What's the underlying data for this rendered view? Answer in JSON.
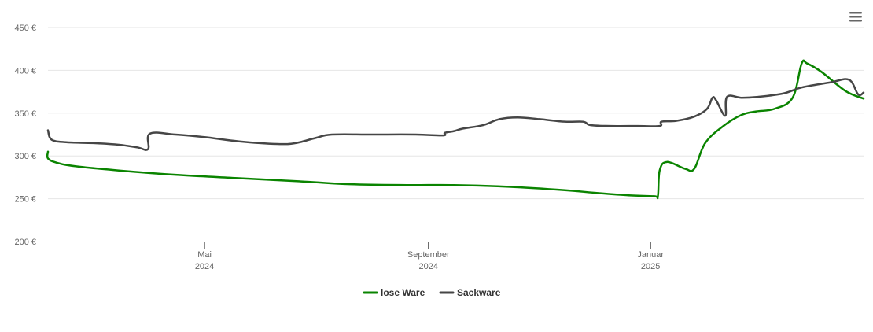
{
  "menu": {
    "icon": "hamburger-menu-icon"
  },
  "colors": {
    "lose_ware": "#0a8400",
    "sackware": "#464646",
    "grid": "#e6e6e6",
    "axis": "#333333"
  },
  "chart_data": {
    "type": "line",
    "xlabel": "",
    "ylabel": "",
    "ylim": [
      200,
      450
    ],
    "yticks": [
      {
        "value": 200,
        "label": "200 €"
      },
      {
        "value": 250,
        "label": "250 €"
      },
      {
        "value": 300,
        "label": "300 €"
      },
      {
        "value": 350,
        "label": "350 €"
      },
      {
        "value": 400,
        "label": "400 €"
      },
      {
        "value": 450,
        "label": "450 €"
      }
    ],
    "xlim": [
      "2024-02-05",
      "2025-04-28"
    ],
    "xticks": [
      {
        "date": "2024-05-01",
        "label1": "Mai",
        "label2": "2024"
      },
      {
        "date": "2024-09-01",
        "label1": "September",
        "label2": "2024"
      },
      {
        "date": "2025-01-01",
        "label1": "Januar",
        "label2": "2025"
      }
    ],
    "grid": true,
    "legend_position": "bottom-center",
    "series": [
      {
        "name": "lose Ware",
        "color": "#0a8400",
        "points": [
          [
            "2024-02-05",
            305
          ],
          [
            "2024-02-05",
            297
          ],
          [
            "2024-02-10",
            292
          ],
          [
            "2024-02-20",
            288
          ],
          [
            "2024-03-15",
            283
          ],
          [
            "2024-04-15",
            278
          ],
          [
            "2024-05-20",
            274
          ],
          [
            "2024-06-25",
            270
          ],
          [
            "2024-07-20",
            267
          ],
          [
            "2024-08-20",
            266
          ],
          [
            "2024-09-15",
            266
          ],
          [
            "2024-10-15",
            264
          ],
          [
            "2024-11-15",
            260
          ],
          [
            "2024-12-01",
            257
          ],
          [
            "2024-12-20",
            254
          ],
          [
            "2025-01-03",
            253
          ],
          [
            "2025-01-05",
            253
          ],
          [
            "2025-01-06",
            283
          ],
          [
            "2025-01-10",
            293
          ],
          [
            "2025-01-20",
            285
          ],
          [
            "2025-01-25",
            285
          ],
          [
            "2025-01-31",
            315
          ],
          [
            "2025-02-10",
            335
          ],
          [
            "2025-02-20",
            348
          ],
          [
            "2025-02-28",
            352
          ],
          [
            "2025-03-10",
            355
          ],
          [
            "2025-03-20",
            368
          ],
          [
            "2025-03-25",
            408
          ],
          [
            "2025-03-28",
            408
          ],
          [
            "2025-04-05",
            398
          ],
          [
            "2025-04-18",
            376
          ],
          [
            "2025-04-28",
            367
          ]
        ]
      },
      {
        "name": "Sackware",
        "color": "#464646",
        "points": [
          [
            "2024-02-05",
            330
          ],
          [
            "2024-02-07",
            319
          ],
          [
            "2024-02-15",
            316
          ],
          [
            "2024-03-01",
            315
          ],
          [
            "2024-03-15",
            313
          ],
          [
            "2024-03-25",
            310
          ],
          [
            "2024-03-31",
            308
          ],
          [
            "2024-04-01",
            326
          ],
          [
            "2024-04-15",
            325
          ],
          [
            "2024-05-01",
            322
          ],
          [
            "2024-05-20",
            317
          ],
          [
            "2024-06-10",
            314
          ],
          [
            "2024-06-20",
            315
          ],
          [
            "2024-07-01",
            321
          ],
          [
            "2024-07-10",
            325
          ],
          [
            "2024-08-01",
            325
          ],
          [
            "2024-08-25",
            325
          ],
          [
            "2024-09-09",
            324
          ],
          [
            "2024-09-10",
            327
          ],
          [
            "2024-09-15",
            329
          ],
          [
            "2024-09-20",
            332
          ],
          [
            "2024-10-01",
            336
          ],
          [
            "2024-10-10",
            343
          ],
          [
            "2024-10-20",
            345
          ],
          [
            "2024-11-01",
            343
          ],
          [
            "2024-11-15",
            340
          ],
          [
            "2024-11-25",
            340
          ],
          [
            "2024-11-29",
            336
          ],
          [
            "2024-12-10",
            335
          ],
          [
            "2024-12-25",
            335
          ],
          [
            "2025-01-06",
            335
          ],
          [
            "2025-01-07",
            340
          ],
          [
            "2025-01-15",
            341
          ],
          [
            "2025-01-25",
            346
          ],
          [
            "2025-02-01",
            355
          ],
          [
            "2025-02-04",
            368
          ],
          [
            "2025-02-06",
            365
          ],
          [
            "2025-02-11",
            347
          ],
          [
            "2025-02-12",
            369
          ],
          [
            "2025-02-20",
            368
          ],
          [
            "2025-03-01",
            369
          ],
          [
            "2025-03-15",
            373
          ],
          [
            "2025-03-25",
            380
          ],
          [
            "2025-04-10",
            386
          ],
          [
            "2025-04-20",
            389
          ],
          [
            "2025-04-25",
            372
          ],
          [
            "2025-04-28",
            374
          ]
        ]
      }
    ]
  },
  "legend": [
    {
      "label": "lose Ware",
      "color": "#0a8400"
    },
    {
      "label": "Sackware",
      "color": "#464646"
    }
  ]
}
